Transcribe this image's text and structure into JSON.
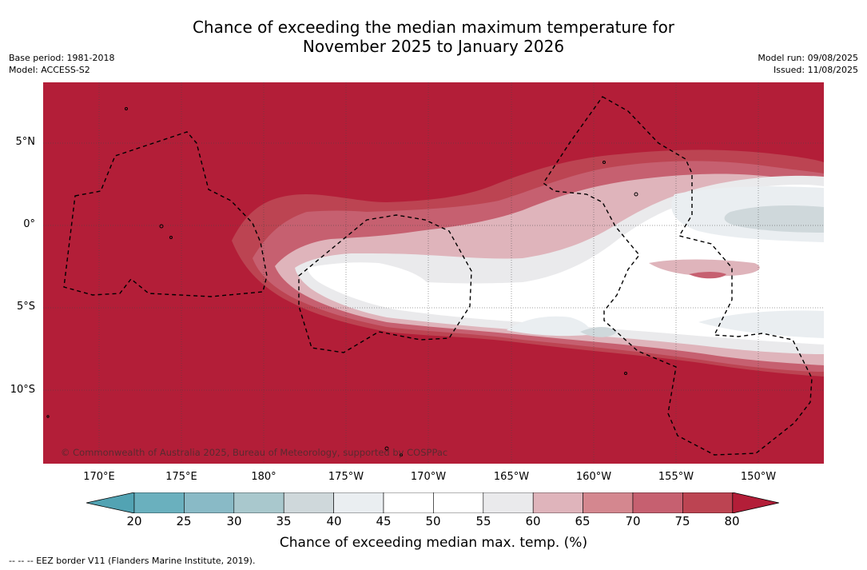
{
  "header": {
    "title_line1": "Chance of exceeding the median maximum temperature for",
    "title_line2": "November 2025 to January 2026",
    "base_period": "Base period: 1981-2018",
    "model": "Model: ACCESS-S2",
    "model_run": "Model run: 09/08/2025",
    "issued": "Issued: 11/08/2025"
  },
  "map": {
    "lat_labels": [
      "5°N",
      "0°",
      "5°S",
      "10°S"
    ],
    "lon_labels": [
      "170°E",
      "175°E",
      "180°",
      "175°W",
      "170°W",
      "165°W",
      "160°W",
      "155°W",
      "150°W"
    ],
    "credit": "© Commonwealth of Australia 2025, Bureau of Meteorology, supported by COSPPac",
    "background_color": "#b31e38",
    "border_style": "dashed"
  },
  "colorbar": {
    "ticks": [
      "20",
      "25",
      "30",
      "35",
      "40",
      "45",
      "50",
      "55",
      "60",
      "65",
      "70",
      "75",
      "80"
    ],
    "colors": [
      "#52a3b3",
      "#6ab0be",
      "#89bac6",
      "#a9c8cd",
      "#cfd8db",
      "#eaeef1",
      "#ffffff",
      "#ffffff",
      "#eaeaec",
      "#dfb4bb",
      "#d4878f",
      "#c66070",
      "#bc4452",
      "#b31e38"
    ],
    "label": "Chance of exceeding median max. temp. (%)"
  },
  "footer": {
    "legend": "--  --  -- EEZ border V11 (Flanders Marine Institute, 2019)."
  }
}
